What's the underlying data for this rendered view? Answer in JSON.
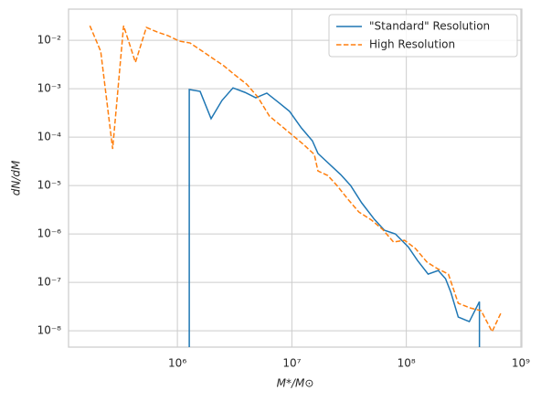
{
  "chart_data": {
    "type": "line",
    "xlabel": "M*/M⊙",
    "ylabel": "dN/dM",
    "xscale": "log",
    "yscale": "log",
    "xlim": [
      112000,
      1020000000
    ],
    "ylim": [
      4.6e-09,
      0.044
    ],
    "xticks": [
      {
        "value": 1000000,
        "label": "10⁶"
      },
      {
        "value": 10000000,
        "label": "10⁷"
      },
      {
        "value": 100000000,
        "label": "10⁸"
      },
      {
        "value": 1000000000,
        "label": "10⁹"
      }
    ],
    "yticks": [
      {
        "value": 1e-08,
        "label": "10⁻⁸"
      },
      {
        "value": 1e-07,
        "label": "10⁻⁷"
      },
      {
        "value": 1e-06,
        "label": "10⁻⁶"
      },
      {
        "value": 1e-05,
        "label": "10⁻⁵"
      },
      {
        "value": 0.0001,
        "label": "10⁻⁴"
      },
      {
        "value": 0.001,
        "label": "10⁻³"
      },
      {
        "value": 0.01,
        "label": "10⁻²"
      }
    ],
    "grid": true,
    "legend": "upper right",
    "series": [
      {
        "name": "\"Standard\" Resolution",
        "color": "#1f77b4",
        "linestyle": "solid",
        "x": [
          1270000,
          1270000,
          1580000,
          1970000,
          2450000,
          3060000,
          3890000,
          4840000,
          6040000,
          7660000,
          9550000,
          12100000,
          15100000,
          16900000,
          26700000,
          32600000,
          40700000,
          52600000,
          64400000,
          80200000,
          104000000,
          125000000,
          155000000,
          190000000,
          220000000,
          245000000,
          284000000,
          355000000,
          435000000,
          435000000
        ],
        "values": [
          1e-09,
          0.00096,
          0.00088,
          0.00024,
          0.00057,
          0.00104,
          0.00084,
          0.00065,
          0.00081,
          0.00052,
          0.00034,
          0.000155,
          8.4e-05,
          4.6e-05,
          1.68e-05,
          1e-05,
          4.4e-06,
          2e-06,
          1.19e-06,
          1e-06,
          5.4e-07,
          2.84e-07,
          1.48e-07,
          1.76e-07,
          1.19e-07,
          6.2e-08,
          1.92e-08,
          1.55e-08,
          4e-08,
          1e-09
        ]
      },
      {
        "name": "High Resolution",
        "color": "#ff7f0e",
        "linestyle": "dashed",
        "x": [
          172000,
          214000,
          272000,
          339000,
          430000,
          536000,
          668000,
          832000,
          1040000,
          1290000,
          1610000,
          2050000,
          2550000,
          3180000,
          4030000,
          5020000,
          6380000,
          7950000,
          9910000,
          12600000,
          15700000,
          16900000,
          20600000,
          24800000,
          30900000,
          38500000,
          49800000,
          62100000,
          77300000,
          96400000,
          120000000,
          152000000,
          187000000,
          233000000,
          284000000,
          361000000,
          450000000,
          561000000,
          674000000
        ],
        "values": [
          0.02,
          0.0059,
          5.7e-05,
          0.02,
          0.0035,
          0.0184,
          0.0148,
          0.0124,
          0.0096,
          0.0088,
          0.0062,
          0.0042,
          0.00296,
          0.00192,
          0.00124,
          0.00068,
          0.00027,
          0.000176,
          0.000114,
          7.1e-05,
          4.4e-05,
          2e-05,
          1.61e-05,
          1e-05,
          5.2e-06,
          2.84e-06,
          1.92e-06,
          1.24e-06,
          6.8e-07,
          7.4e-07,
          5e-07,
          2.6e-07,
          1.92e-07,
          1.48e-07,
          3.7e-08,
          2.96e-08,
          2.6e-08,
          9.6e-09,
          2.4e-08
        ]
      }
    ]
  }
}
